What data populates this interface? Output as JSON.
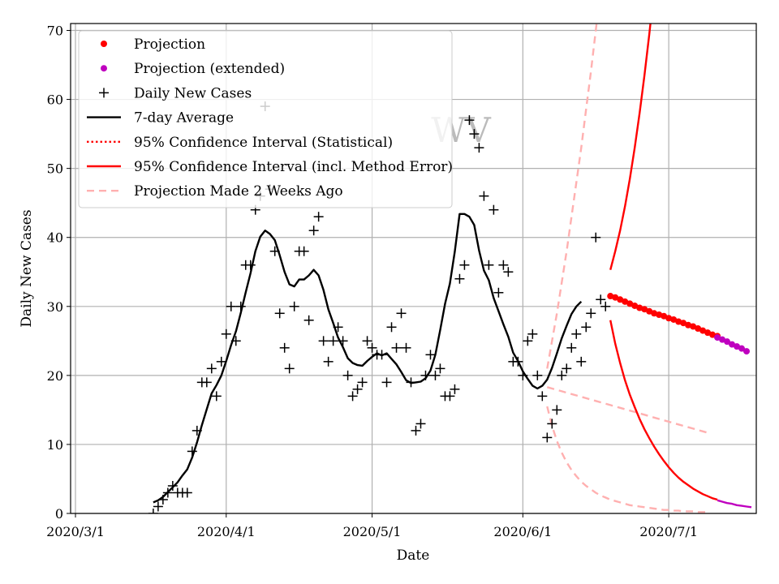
{
  "chart_data": {
    "type": "line",
    "title": "",
    "watermark": "WV",
    "xlabel": "Date",
    "ylabel": "Daily New Cases",
    "x_start": "2020-02-29",
    "x_end": "2020-07-19",
    "xticks": [
      {
        "date": "2020-03-01",
        "label": "2020/3/1"
      },
      {
        "date": "2020-04-01",
        "label": "2020/4/1"
      },
      {
        "date": "2020-05-01",
        "label": "2020/5/1"
      },
      {
        "date": "2020-06-01",
        "label": "2020/6/1"
      },
      {
        "date": "2020-07-01",
        "label": "2020/7/1"
      }
    ],
    "ylim": [
      0,
      71
    ],
    "yticks": [
      0,
      10,
      20,
      30,
      40,
      50,
      60,
      70
    ],
    "grid": true,
    "legend_position": "upper-left",
    "legend": [
      {
        "key": "projection",
        "label": "Projection",
        "kind": "dot",
        "color": "#ff0000"
      },
      {
        "key": "projection_ext",
        "label": "Projection (extended)",
        "kind": "dot",
        "color": "#bf00bf"
      },
      {
        "key": "daily",
        "label": "Daily New Cases",
        "kind": "plus",
        "color": "#000000"
      },
      {
        "key": "avg7",
        "label": "7-day Average",
        "kind": "line",
        "color": "#000000"
      },
      {
        "key": "ci_stat",
        "label": "95% Confidence Interval (Statistical)",
        "kind": "dotted",
        "color": "#ff0000"
      },
      {
        "key": "ci_method",
        "label": "95% Confidence Interval (incl. Method Error)",
        "kind": "line",
        "color": "#ff0000"
      },
      {
        "key": "proj2w",
        "label": "Projection Made 2 Weeks Ago",
        "kind": "dashed",
        "color": "#ffb0b0"
      }
    ],
    "daily_new_cases": {
      "start_date": "2020-03-17",
      "values": [
        0,
        1,
        2,
        3,
        4,
        3,
        3,
        3,
        9,
        12,
        19,
        19,
        21,
        17,
        22,
        26,
        30,
        25,
        30,
        36,
        36,
        44,
        46,
        59,
        47,
        38,
        29,
        24,
        21,
        30,
        38,
        38,
        28,
        41,
        43,
        25,
        22,
        25,
        27,
        25,
        20,
        17,
        18,
        19,
        25,
        24,
        23,
        23,
        19,
        27,
        24,
        29,
        24,
        19,
        12,
        13,
        20,
        23,
        20,
        21,
        17,
        17,
        18,
        34,
        36,
        57,
        55,
        53,
        46,
        36,
        44,
        32,
        36,
        35,
        22,
        22,
        20,
        25,
        26,
        20,
        17,
        11,
        13,
        15,
        20,
        21,
        24,
        26,
        22,
        27,
        29,
        40,
        31,
        30
      ]
    },
    "avg7": {
      "start_date": "2020-03-17",
      "values": [
        1.6,
        1.9,
        2.4,
        3.1,
        3.8,
        4.5,
        5.5,
        6.4,
        8.1,
        10.3,
        12.8,
        15.1,
        17.4,
        18.6,
        20.0,
        22.1,
        24.4,
        26.4,
        29.1,
        32.0,
        34.8,
        38.0,
        40.1,
        41.0,
        40.5,
        39.6,
        37.4,
        35.0,
        33.2,
        32.9,
        33.9,
        33.9,
        34.5,
        35.3,
        34.5,
        32.4,
        29.6,
        27.6,
        25.5,
        24.1,
        22.5,
        21.8,
        21.5,
        21.4,
        22.1,
        22.7,
        23.2,
        22.9,
        23.2,
        22.4,
        21.6,
        20.5,
        19.3,
        18.9,
        19.0,
        19.1,
        19.6,
        20.7,
        23.0,
        26.6,
        30.4,
        33.3,
        37.9,
        43.4,
        43.4,
        43.0,
        41.8,
        38.1,
        35.2,
        33.8,
        31.2,
        29.3,
        27.4,
        25.6,
        23.3,
        22.1,
        20.6,
        19.5,
        18.5,
        18.1,
        18.5,
        19.4,
        21.1,
        23.2,
        25.4,
        27.2,
        28.9,
        30.0,
        30.7
      ]
    },
    "projection": {
      "start_date": "2020-06-19",
      "values": [
        31.5,
        31.3,
        31.0,
        30.7,
        30.4,
        30.1,
        29.8,
        29.6,
        29.3,
        29.0,
        28.8,
        28.6,
        28.3,
        28.1,
        27.8,
        27.6,
        27.3,
        27.1,
        26.8,
        26.5,
        26.2,
        25.9,
        25.7
      ]
    },
    "projection_extended": {
      "start_date": "2020-07-11",
      "values": [
        25.5,
        25.2,
        24.9,
        24.5,
        24.2,
        23.9,
        23.5
      ]
    },
    "ci_method_upper": {
      "start_date": "2020-06-19",
      "values": [
        35.3,
        38.0,
        41.0,
        44.5,
        48.5,
        53.0,
        58.0,
        63.5,
        69.5,
        76.0
      ]
    },
    "ci_method_lower": {
      "start_date": "2020-06-19",
      "values": [
        28.0,
        24.6,
        21.8,
        19.3,
        17.2,
        15.4,
        13.7,
        12.2,
        10.9,
        9.7,
        8.6,
        7.6,
        6.7,
        5.9,
        5.2,
        4.6,
        4.1,
        3.6,
        3.2,
        2.8,
        2.5,
        2.2,
        2.0
      ]
    },
    "ci_method_lower_extended": {
      "start_date": "2020-07-11",
      "values": [
        1.9,
        1.7,
        1.5,
        1.4,
        1.2,
        1.1,
        1.0,
        0.9
      ]
    },
    "projection_2_weeks_ago": {
      "start_date": "2020-06-06",
      "values": [
        18.3,
        18.1,
        17.9,
        17.7,
        17.5,
        17.3,
        17.1,
        16.9,
        16.7,
        16.5,
        16.3,
        16.1,
        15.9,
        15.7,
        15.5,
        15.3,
        15.1,
        14.9,
        14.7,
        14.5,
        14.3,
        14.1,
        13.9,
        13.7,
        13.5,
        13.3,
        13.1,
        12.9,
        12.7,
        12.5,
        12.3,
        12.1,
        11.9,
        11.7
      ]
    },
    "projection_2_weeks_ago_upper": {
      "start_date": "2020-06-06",
      "values": [
        21.0,
        25.0,
        29.0,
        33.5,
        38.0,
        43.0,
        48.0,
        53.0,
        58.5,
        64.0,
        70.0,
        76.0
      ]
    },
    "projection_2_weeks_ago_lower": {
      "start_date": "2020-06-06",
      "values": [
        15.5,
        12.7,
        10.5,
        8.8,
        7.4,
        6.3,
        5.4,
        4.6,
        4.0,
        3.5,
        3.0,
        2.6,
        2.3,
        2.0,
        1.8,
        1.6,
        1.4,
        1.2,
        1.1,
        1.0,
        0.9,
        0.8,
        0.7,
        0.6,
        0.5,
        0.5,
        0.4,
        0.4,
        0.3,
        0.3,
        0.3,
        0.2,
        0.2,
        0.2
      ]
    }
  }
}
